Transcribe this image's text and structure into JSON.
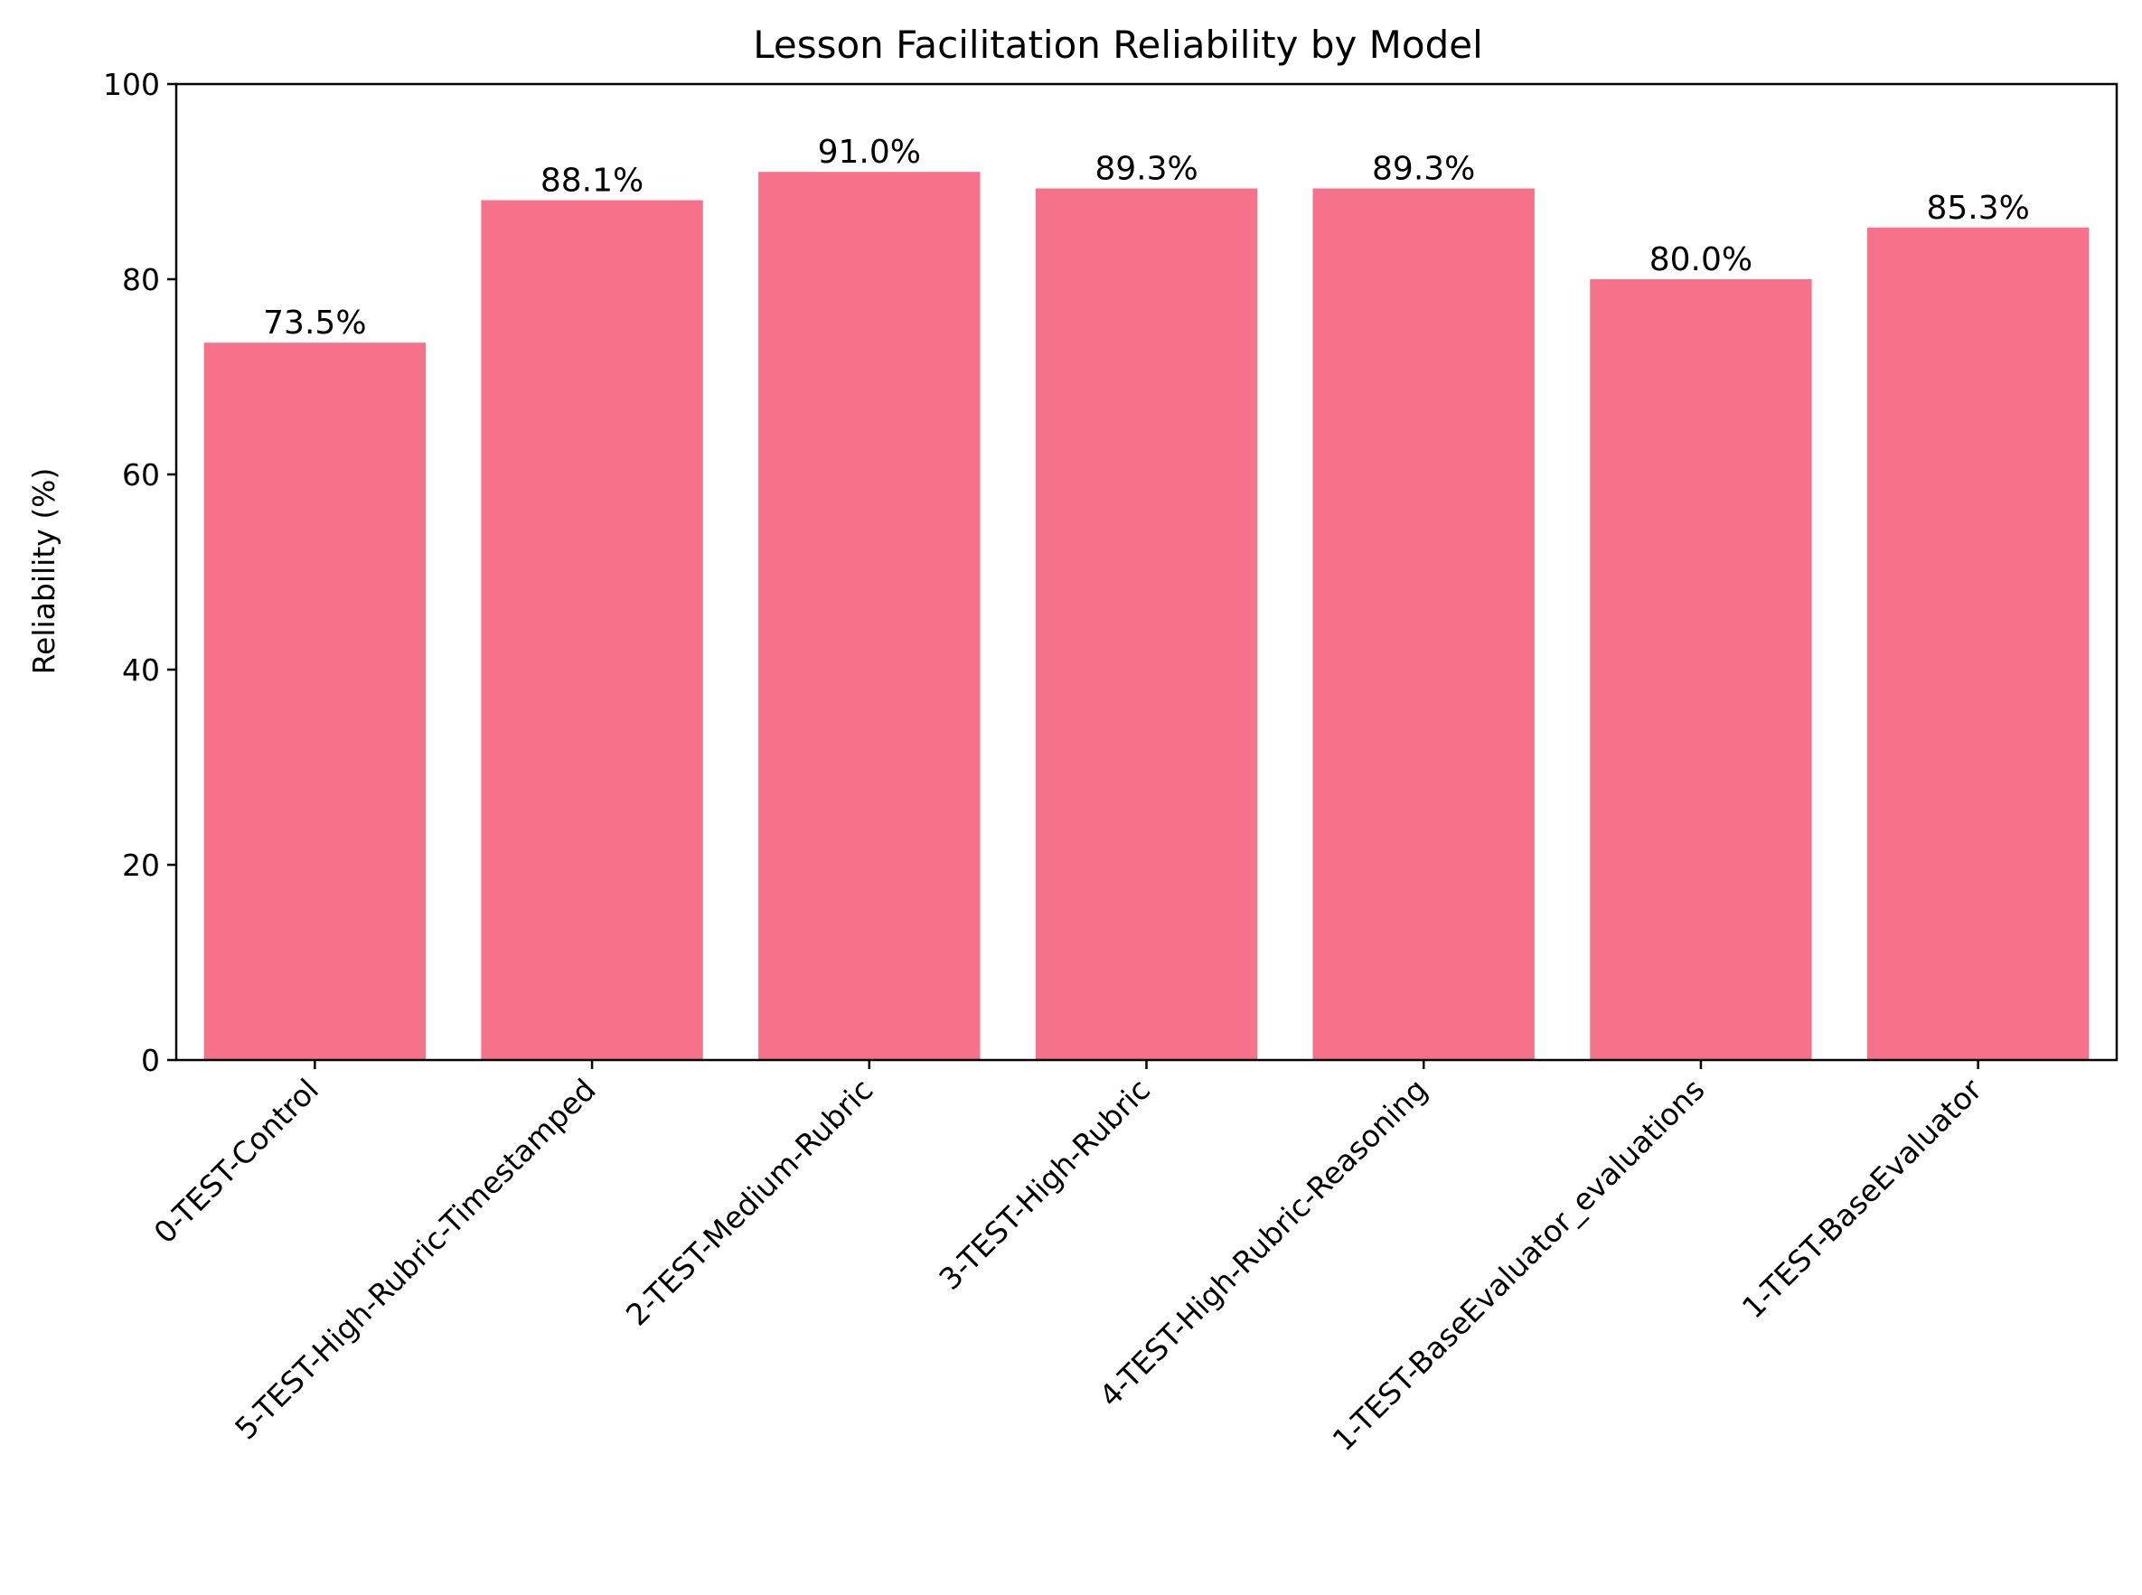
{
  "chart_data": {
    "type": "bar",
    "title": "Lesson Facilitation Reliability by Model",
    "xlabel": "",
    "ylabel": "Reliability (%)",
    "ylim": [
      0,
      100
    ],
    "yticks": [
      0,
      20,
      40,
      60,
      80,
      100
    ],
    "grid": false,
    "bar_color": "#f6728a",
    "categories": [
      "0-TEST-Control",
      "5-TEST-High-Rubric-Timestamped",
      "2-TEST-Medium-Rubric",
      "3-TEST-High-Rubric",
      "4-TEST-High-Rubric-Reasoning",
      "1-TEST-BaseEvaluator_evaluations",
      "1-TEST-BaseEvaluator"
    ],
    "values": [
      73.5,
      88.1,
      91.0,
      89.3,
      89.3,
      80.0,
      85.3
    ],
    "value_labels": [
      "73.5%",
      "88.1%",
      "91.0%",
      "89.3%",
      "89.3%",
      "80.0%",
      "85.3%"
    ]
  }
}
